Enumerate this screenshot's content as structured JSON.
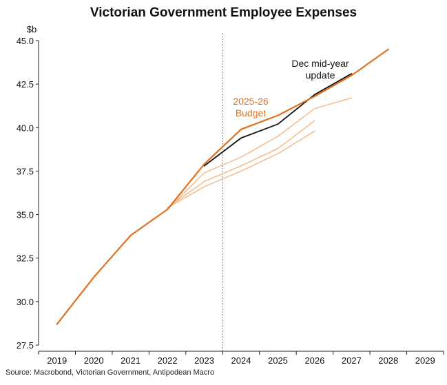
{
  "chart_data": {
    "type": "line",
    "title": "Victorian Government Employee Expenses",
    "ylabel": "$b",
    "xlabel": "",
    "ylim": [
      27.5,
      45.0
    ],
    "yticks": [
      "45.0",
      "42.5",
      "40.0",
      "37.5",
      "35.0",
      "32.5",
      "30.0",
      "27.5"
    ],
    "xticks": [
      "2019",
      "2020",
      "2021",
      "2022",
      "2023",
      "2024",
      "2025",
      "2026",
      "2027",
      "2028",
      "2029"
    ],
    "xlim": [
      2018.5,
      2029.5
    ],
    "vline_x": 2023.5,
    "colors": {
      "budget": "#E07020",
      "prior": "#F5BE8F",
      "myefo": "#111111",
      "axis": "#222222",
      "vline": "#777777"
    },
    "series": [
      {
        "key": "prior1",
        "x": [
          2022,
          2023,
          2024,
          2025,
          2026
        ],
        "y": [
          35.4,
          36.6,
          37.5,
          38.5,
          39.8
        ]
      },
      {
        "key": "prior2",
        "x": [
          2022,
          2023,
          2024,
          2025,
          2026
        ],
        "y": [
          35.4,
          36.9,
          37.8,
          38.8,
          40.4
        ]
      },
      {
        "key": "prior3",
        "x": [
          2022,
          2023,
          2024,
          2025,
          2026,
          2027
        ],
        "y": [
          35.3,
          37.4,
          38.3,
          39.5,
          41.1,
          41.7
        ]
      },
      {
        "key": "myefo",
        "x": [
          2023,
          2024,
          2025,
          2026,
          2027
        ],
        "y": [
          37.8,
          39.4,
          40.2,
          41.9,
          43.1
        ]
      },
      {
        "key": "budget",
        "x": [
          2019,
          2020,
          2021,
          2022,
          2023,
          2024,
          2025,
          2026,
          2027,
          2028
        ],
        "y": [
          28.7,
          31.4,
          33.8,
          35.3,
          37.9,
          39.9,
          40.7,
          41.8,
          43.0,
          44.5
        ]
      }
    ],
    "annotations": [
      {
        "key": "budget_label",
        "lines": [
          "2025-26",
          "Budget"
        ]
      },
      {
        "key": "myefo_label",
        "lines": [
          "Dec mid-year",
          "update"
        ]
      }
    ],
    "source": "Source: Macrobond, Victorian Government, Antipodean Macro"
  }
}
